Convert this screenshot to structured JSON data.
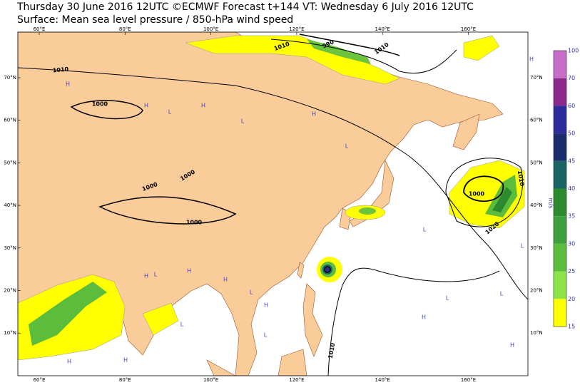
{
  "header": {
    "title": "Thursday 30 June 2016 12UTC ©ECMWF Forecast t+144 VT: Wednesday 6 July 2016 12UTC",
    "subtitle": "Surface: Mean sea level pressure / 850-hPa wind speed"
  },
  "map": {
    "lon_labels": [
      "60°E",
      "80°E",
      "100°E",
      "120°E",
      "140°E",
      "160°E"
    ],
    "lat_labels": [
      "70°N",
      "60°N",
      "50°N",
      "40°N",
      "30°N",
      "20°N",
      "10°N"
    ],
    "isobar_labels": [
      "1010",
      "1000",
      "1000",
      "1000",
      "1000",
      "1010",
      "990",
      "1010",
      "1000",
      "1010",
      "1020",
      "1010"
    ],
    "pressure_centers": [
      "H",
      "H",
      "L",
      "H",
      "L",
      "H",
      "L",
      "H",
      "L",
      "H",
      "L",
      "H",
      "H",
      "L",
      "L",
      "H",
      "H",
      "L",
      "H",
      "L",
      "H",
      "L",
      "H",
      "L"
    ]
  },
  "colorbar": {
    "labels": [
      "100",
      "70",
      "60",
      "50",
      "45",
      "40",
      "35",
      "30",
      "25",
      "20",
      "15"
    ],
    "colors": [
      "#c86ec8",
      "#8c2a8c",
      "#2c2c9c",
      "#1a2c6c",
      "#1a6464",
      "#2e8a2e",
      "#3ea03e",
      "#5cbc3c",
      "#8ee24a",
      "#ffff00"
    ],
    "unit": "m/s"
  }
}
